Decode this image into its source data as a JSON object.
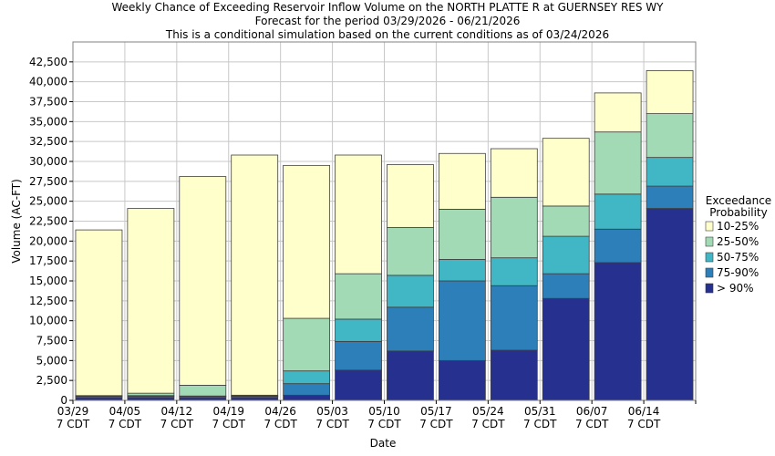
{
  "colors": {
    "plot_background": "#ffffff",
    "grid": "#c8c8c8",
    "bar_outline": "#404040",
    "watermark": "#e3e3f4",
    "series": [
      "#25308f",
      "#2c7fb8",
      "#41b6c4",
      "#a1dab4",
      "#ffffcc"
    ]
  },
  "chart_data": {
    "type": "bar",
    "stacked": true,
    "title": [
      "Weekly Chance of Exceeding Reservoir Inflow Volume on the NORTH PLATTE R at GUERNSEY RES WY",
      "Forecast for the period 03/29/2026 - 06/21/2026",
      "This is a conditional simulation based on the current conditions as of 03/24/2026"
    ],
    "xlabel": "Date",
    "ylabel": "Volume (AC-FT)",
    "ylim": [
      0,
      45000
    ],
    "yticks": [
      0,
      2500,
      5000,
      7500,
      10000,
      12500,
      15000,
      17500,
      20000,
      22500,
      25000,
      27500,
      30000,
      32500,
      35000,
      37500,
      40000,
      42500
    ],
    "ytick_labels": [
      "0",
      "2,500",
      "5,000",
      "7,500",
      "10,000",
      "12,500",
      "15,000",
      "17,500",
      "20,000",
      "22,500",
      "25,000",
      "27,500",
      "30,000",
      "32,500",
      "35,000",
      "37,500",
      "40,000",
      "42,500"
    ],
    "xtick_labels": [
      [
        "03/29",
        "7 CDT"
      ],
      [
        "04/05",
        "7 CDT"
      ],
      [
        "04/12",
        "7 CDT"
      ],
      [
        "04/19",
        "7 CDT"
      ],
      [
        "04/26",
        "7 CDT"
      ],
      [
        "05/03",
        "7 CDT"
      ],
      [
        "05/10",
        "7 CDT"
      ],
      [
        "05/17",
        "7 CDT"
      ],
      [
        "05/24",
        "7 CDT"
      ],
      [
        "05/31",
        "7 CDT"
      ],
      [
        "06/07",
        "7 CDT"
      ],
      [
        "06/14",
        "7 CDT"
      ]
    ],
    "grid": true,
    "legend": {
      "title": [
        "Exceedance",
        "Probability"
      ],
      "placement": "right",
      "entries": [
        "10-25%",
        "25-50%",
        "50-75%",
        "75-90%",
        "> 90%"
      ]
    },
    "series": [
      {
        "name": "> 90%",
        "tops": [
          350,
          350,
          350,
          350,
          650,
          3800,
          6200,
          5000,
          6300,
          12800,
          17300,
          24100
        ]
      },
      {
        "name": "75-90%",
        "tops": [
          500,
          500,
          500,
          500,
          2100,
          7400,
          11700,
          15000,
          14400,
          15900,
          21500,
          26900
        ]
      },
      {
        "name": "50-75%",
        "tops": [
          550,
          600,
          550,
          550,
          3700,
          10200,
          15700,
          17700,
          17900,
          20600,
          25900,
          30500
        ]
      },
      {
        "name": "25-50%",
        "tops": [
          600,
          900,
          1900,
          650,
          10300,
          15900,
          21700,
          24000,
          25500,
          24400,
          33700,
          36000
        ]
      },
      {
        "name": "10-25%",
        "tops": [
          21400,
          24100,
          28100,
          30800,
          29500,
          30800,
          29600,
          31000,
          31600,
          32900,
          38600,
          41400
        ]
      }
    ]
  }
}
